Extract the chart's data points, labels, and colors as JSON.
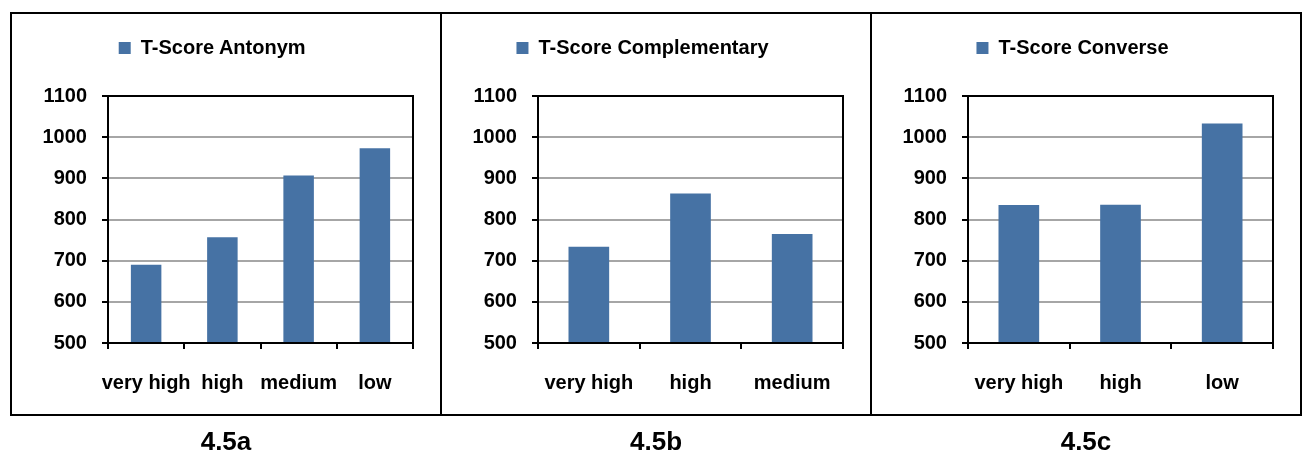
{
  "chart_data": [
    {
      "type": "bar",
      "categories": [
        "very high",
        "high",
        "medium",
        "low"
      ],
      "series": [
        {
          "name": "T-Score Antonym",
          "color": "#4672a4",
          "values": [
            690,
            757,
            907,
            973
          ]
        }
      ],
      "ylim": [
        500,
        1100
      ],
      "yticks": [
        500,
        600,
        700,
        800,
        900,
        1000,
        1100
      ],
      "grid": "y",
      "legend": "top",
      "annotations": [
        "4.5a"
      ]
    },
    {
      "type": "bar",
      "categories": [
        "very high",
        "high",
        "medium"
      ],
      "series": [
        {
          "name": "T-Score Complementary",
          "color": "#4672a4",
          "values": [
            734,
            863,
            765
          ]
        }
      ],
      "ylim": [
        500,
        1100
      ],
      "yticks": [
        500,
        600,
        700,
        800,
        900,
        1000,
        1100
      ],
      "grid": "y",
      "legend": "top",
      "annotations": [
        "4.5b"
      ]
    },
    {
      "type": "bar",
      "categories": [
        "very high",
        "high",
        "low"
      ],
      "series": [
        {
          "name": "T-Score Converse",
          "color": "#4672a4",
          "values": [
            835,
            836,
            1033
          ]
        }
      ],
      "ylim": [
        500,
        1100
      ],
      "yticks": [
        500,
        600,
        700,
        800,
        900,
        1000,
        1100
      ],
      "grid": "y",
      "legend": "top",
      "annotations": [
        "4.5c"
      ]
    }
  ]
}
